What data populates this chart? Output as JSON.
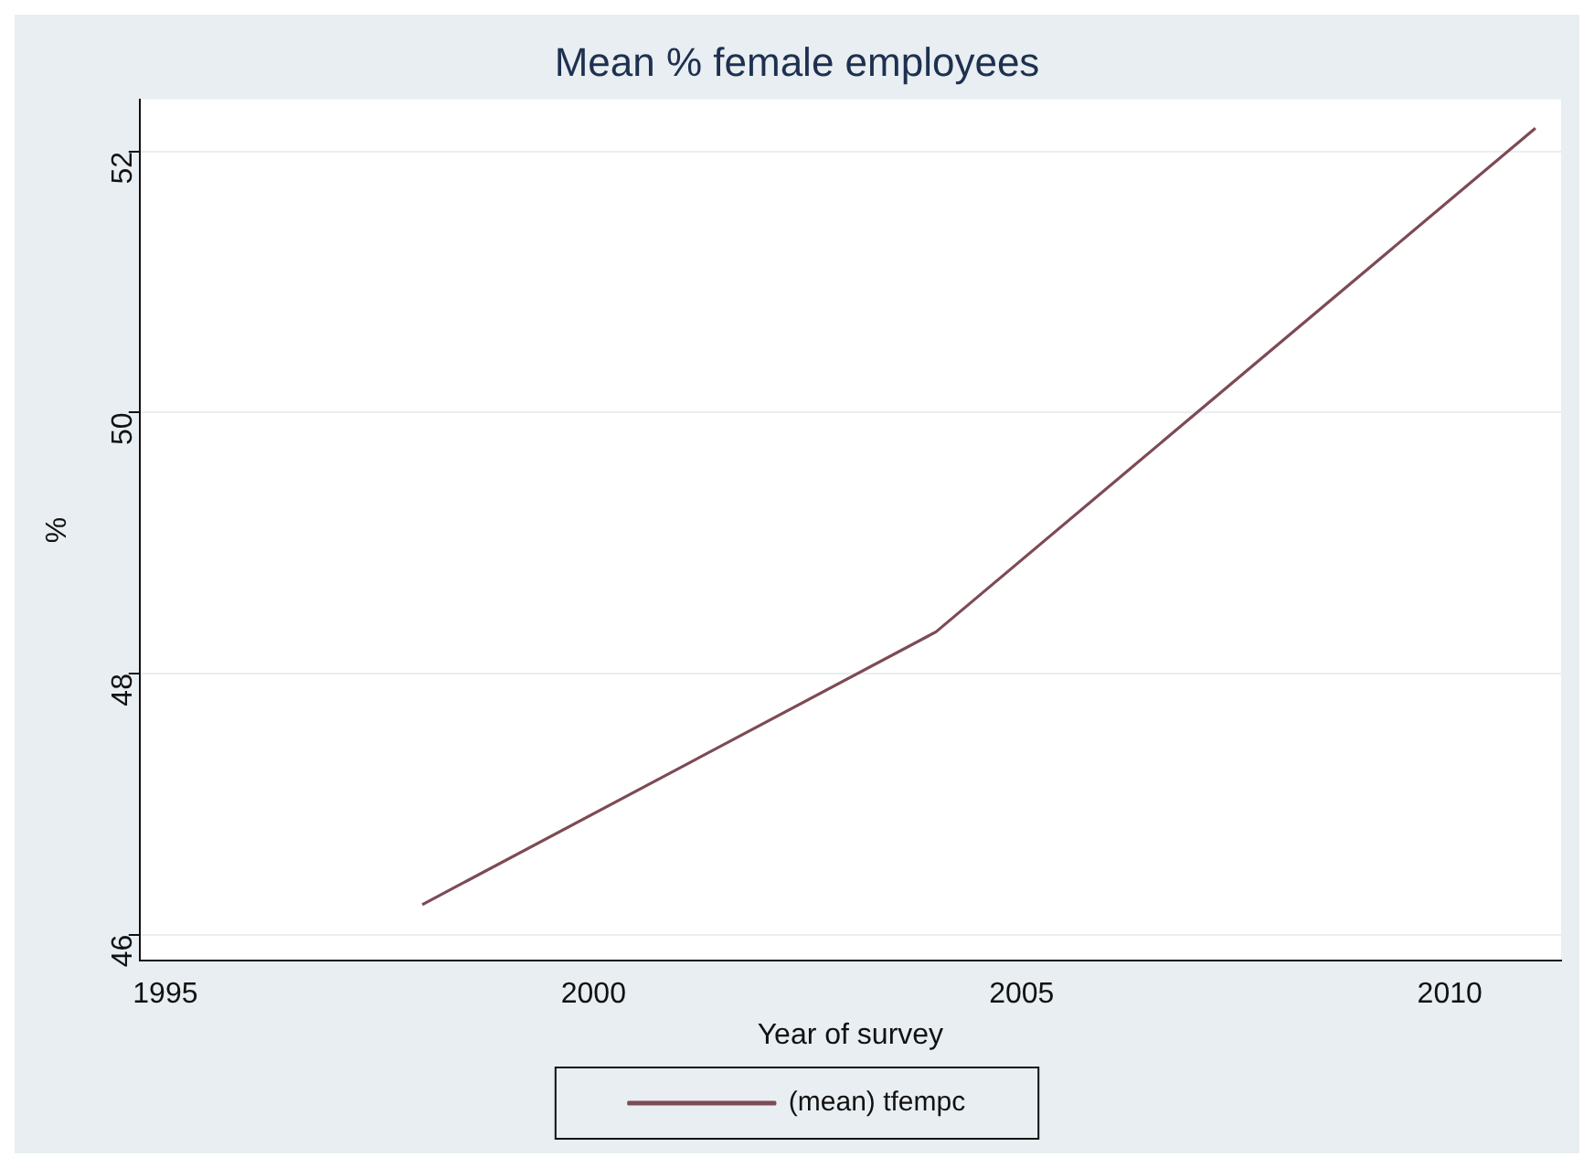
{
  "chart_data": {
    "type": "line",
    "title": "Mean % female employees",
    "xlabel": "Year of survey",
    "ylabel": "%",
    "x": [
      1998,
      2004,
      2011
    ],
    "series": [
      {
        "name": "(mean) tfempc",
        "color": "#7d4b55",
        "values": [
          46.23,
          48.32,
          52.18
        ]
      }
    ],
    "xlim": [
      1994.7,
      2011.3
    ],
    "xticks": [
      1995,
      2000,
      2005,
      2010
    ],
    "ylim": [
      45.8,
      52.4
    ],
    "yticks": [
      46,
      48,
      50,
      52
    ],
    "grid": "y",
    "legend": "bottom",
    "marker": "none",
    "line_style": "solid"
  }
}
